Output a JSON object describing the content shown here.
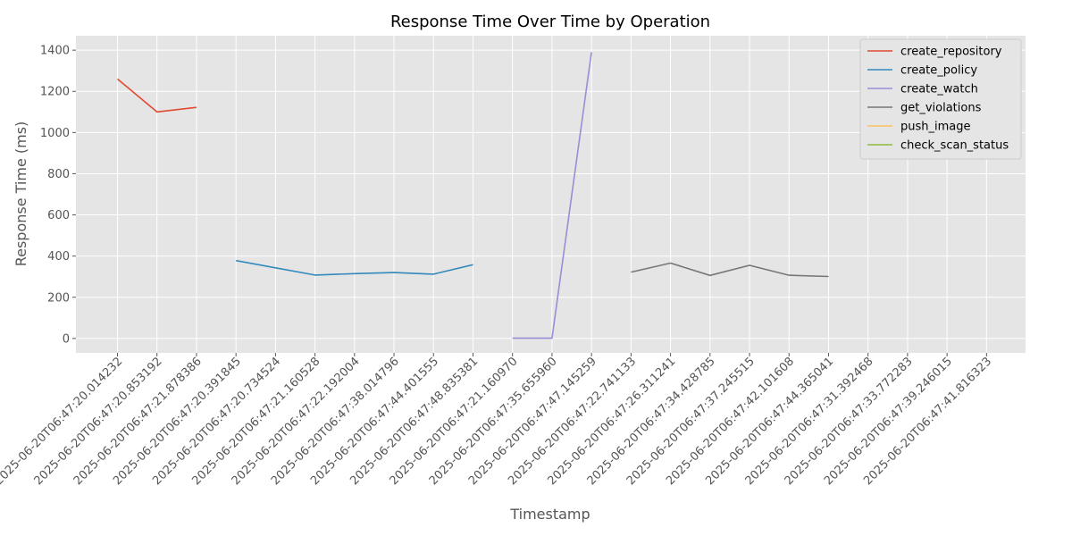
{
  "chart_data": {
    "type": "line",
    "title": "Response Time Over Time by Operation",
    "xlabel": "Timestamp",
    "ylabel": "Response Time (ms)",
    "ylim": [
      -70,
      1470
    ],
    "yticks": [
      0,
      200,
      400,
      600,
      800,
      1000,
      1200,
      1400
    ],
    "grid": true,
    "legend_position": "top-right",
    "categories": [
      "2025-06-20T06:47:20.014232",
      "2025-06-20T06:47:20.853192",
      "2025-06-20T06:47:21.878386",
      "2025-06-20T06:47:20.391845",
      "2025-06-20T06:47:20.734524",
      "2025-06-20T06:47:21.160528",
      "2025-06-20T06:47:22.192004",
      "2025-06-20T06:47:38.014796",
      "2025-06-20T06:47:44.401555",
      "2025-06-20T06:47:48.835381",
      "2025-06-20T06:47:21.160970",
      "2025-06-20T06:47:35.655960",
      "2025-06-20T06:47:47.145259",
      "2025-06-20T06:47:22.741133",
      "2025-06-20T06:47:26.311241",
      "2025-06-20T06:47:34.428785",
      "2025-06-20T06:47:37.245515",
      "2025-06-20T06:47:42.101608",
      "2025-06-20T06:47:44.365041",
      "2025-06-20T06:47:31.392468",
      "2025-06-20T06:47:33.772283",
      "2025-06-20T06:47:39.246015",
      "2025-06-20T06:47:41.816323"
    ],
    "series": [
      {
        "name": "create_repository",
        "color": "#E24A33",
        "points": [
          [
            0,
            1260
          ],
          [
            1,
            1100
          ],
          [
            2,
            1122
          ]
        ]
      },
      {
        "name": "create_policy",
        "color": "#348ABD",
        "points": [
          [
            3,
            378
          ],
          [
            4,
            343
          ],
          [
            5,
            308
          ],
          [
            6,
            315
          ],
          [
            7,
            320
          ],
          [
            8,
            312
          ],
          [
            9,
            358
          ]
        ]
      },
      {
        "name": "create_watch",
        "color": "#988ED5",
        "points": [
          [
            10,
            1
          ],
          [
            11,
            1
          ],
          [
            12,
            1390
          ]
        ]
      },
      {
        "name": "get_violations",
        "color": "#777777",
        "points": [
          [
            13,
            322
          ],
          [
            14,
            366
          ],
          [
            15,
            306
          ],
          [
            16,
            355
          ],
          [
            17,
            307
          ],
          [
            18,
            301
          ]
        ]
      },
      {
        "name": "push_image",
        "color": "#FBC15E",
        "points": []
      },
      {
        "name": "check_scan_status",
        "color": "#8EBA42",
        "points": []
      }
    ]
  }
}
